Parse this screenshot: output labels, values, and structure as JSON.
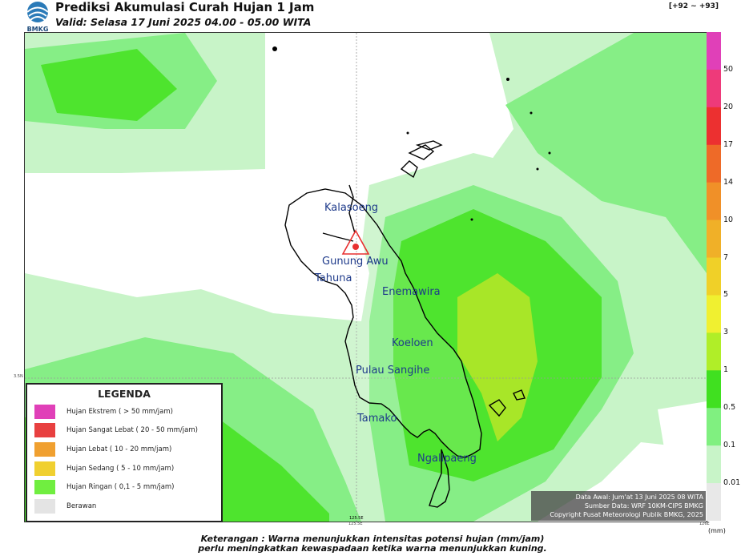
{
  "header": {
    "title": "Prediksi Akumulasi Curah Hujan 1 Jam",
    "subtitle": "Valid: Selasa 17 Juni 2025 04.00 - 05.00 WITA",
    "code": "[+92 ~ +93]",
    "logo_text": "BMKG"
  },
  "map": {
    "places": [
      "Kalasoeng",
      "Gunung Awu",
      "Tahuna",
      "Enemawira",
      "Koeloen",
      "Pulau Sangihe",
      "Tamako",
      "Ngalipaeng"
    ],
    "lat_label": "3.5N",
    "lon_labels": [
      "125.5E",
      "126E"
    ],
    "volcano_icon": "volcano-warning-icon"
  },
  "legend": {
    "title": "LEGENDA",
    "items": [
      {
        "label": "Hujan Ekstrem ( > 50 mm/jam)",
        "color": "#e040b8"
      },
      {
        "label": "Hujan Sangat Lebat ( 20 - 50 mm/jam)",
        "color": "#e84040"
      },
      {
        "label": "Hujan Lebat ( 10 - 20 mm/jam)",
        "color": "#f0a030"
      },
      {
        "label": "Hujan Sedang ( 5 - 10 mm/jam)",
        "color": "#f0d030"
      },
      {
        "label": "Hujan Ringan ( 0,1 - 5 mm/jam)",
        "color": "#70ee40"
      },
      {
        "label": "Berawan",
        "color": "#e4e4e4"
      }
    ]
  },
  "credit": {
    "line1": "Data Awal: Jum'at 13 Juni 2025 08 WITA",
    "line2": "Sumber Data: WRF 10KM-CIPS BMKG",
    "line3": "Copyright Pusat Meteorologi Publik BMKG, 2025"
  },
  "colorbar": {
    "ticks": [
      "50",
      "20",
      "17",
      "14",
      "10",
      "7",
      "5",
      "3",
      "1",
      "0.5",
      "0.1",
      "0.01"
    ],
    "colors": [
      "#e040b8",
      "#ee3a7a",
      "#ec3030",
      "#ee6a28",
      "#f09028",
      "#f0b028",
      "#f0d028",
      "#f0f030",
      "#b0ee28",
      "#40e020",
      "#80f080",
      "#c8f4c8",
      "#e8e8e8"
    ],
    "unit": "(mm)"
  },
  "footer": {
    "note1": "Keterangan : Warna menunjukkan intensitas potensi hujan (mm/jam)",
    "note2": "perlu meningkatkan kewaspadaan ketika warna menunjukkan kuning."
  }
}
